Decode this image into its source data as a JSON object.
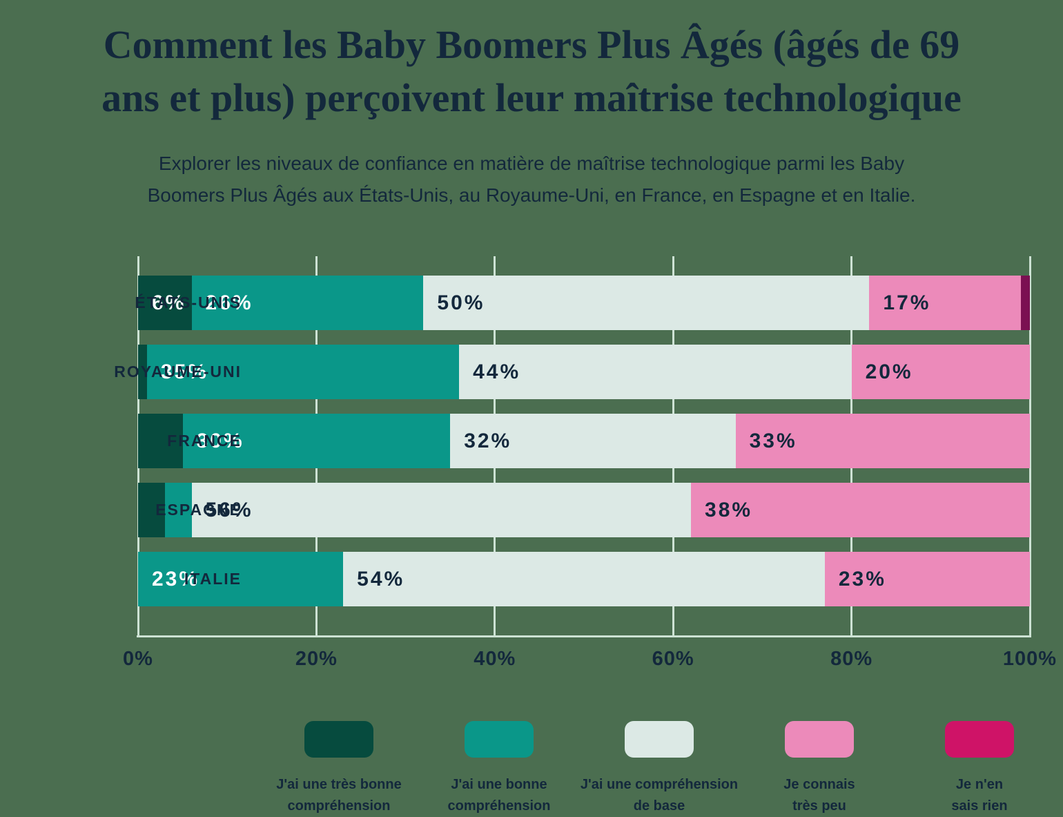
{
  "header": {
    "title": "Comment les Baby Boomers Plus Âgés (âgés de 69 ans et plus) perçoivent leur maîtrise technologique",
    "title_lines": [
      "Comment les Baby Boomers Plus Âgés (âgés de 69",
      "ans et plus) perçoivent leur maîtrise technologique"
    ],
    "subtitle_lines": [
      "Explorer les niveaux de confiance en matière de maîtrise technologique parmi les Baby",
      "Boomers Plus Âgés aux États-Unis, au Royaume-Uni, en France, en Espagne et en Italie."
    ]
  },
  "colors": {
    "background": "#4B6E50",
    "text": "#13283C",
    "gridline": "#CDE2D4",
    "label_on_dark": "#FFFFFF"
  },
  "chart_data": {
    "type": "bar",
    "variant": "horizontal-stacked-100",
    "title": "Comment les Baby Boomers Plus Âgés (âgés de 69 ans et plus) perçoivent leur maîtrise technologique",
    "categories": [
      "ÉTATS-UNIS",
      "ROYAUME-UNI",
      "FRANCE",
      "ESPAGNE",
      "ITALIE"
    ],
    "series": [
      {
        "name": "J'ai une très bonne compréhension",
        "legend_lines": [
          "J'ai une très bonne",
          "compréhension"
        ],
        "color": "#064B3E",
        "label_style": "light",
        "values": [
          6,
          1,
          5,
          3,
          0
        ]
      },
      {
        "name": "J'ai une bonne compréhension",
        "legend_lines": [
          "J'ai une bonne",
          "compréhension"
        ],
        "color": "#0A9789",
        "label_style": "light",
        "values": [
          26,
          35,
          30,
          3,
          23
        ]
      },
      {
        "name": "J'ai une compréhension de base",
        "legend_lines": [
          "J'ai une compréhension",
          "de base"
        ],
        "color": "#DCE9E5",
        "label_style": "dark",
        "values": [
          50,
          44,
          32,
          56,
          54
        ]
      },
      {
        "name": "Je connais très peu",
        "legend_lines": [
          "Je connais",
          "très peu"
        ],
        "color": "#EC8ABA",
        "label_style": "dark",
        "values": [
          17,
          20,
          33,
          38,
          23
        ]
      },
      {
        "name": "Je n'en sais rien",
        "legend_lines": [
          "Je n'en",
          "sais rien"
        ],
        "color": "#CF1367",
        "bar_color": "#7B1052",
        "label_style": "light",
        "values": [
          1,
          0,
          0,
          0,
          0
        ]
      }
    ],
    "x_ticks": [
      "0%",
      "20%",
      "40%",
      "60%",
      "80%",
      "100%"
    ],
    "xlim": [
      0,
      100
    ],
    "label_suffix": "%",
    "min_label_value": 6,
    "grid": "vertical",
    "legend_position": "bottom"
  }
}
